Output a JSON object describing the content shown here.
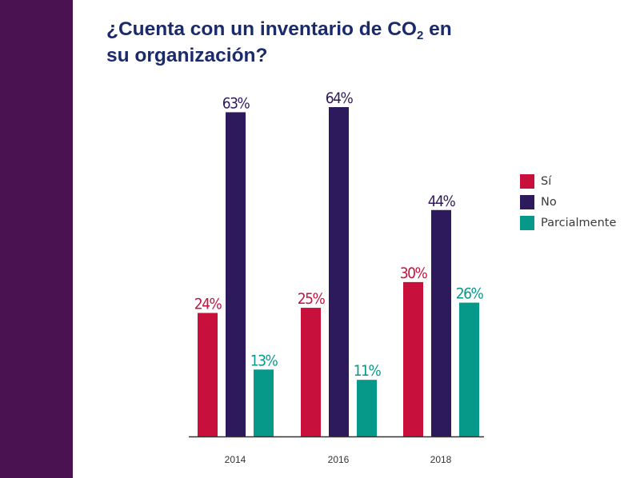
{
  "title_part1": "¿Cuenta con un inventario de CO",
  "title_sub": "2",
  "title_part2": " en",
  "title_line2": "su organización?",
  "colors": {
    "sidebar": "#4a1250",
    "title": "#1b2a6b",
    "axis": "#333333"
  },
  "chart_data": {
    "type": "bar",
    "categories": [
      "2014",
      "2016",
      "2018"
    ],
    "series": [
      {
        "name": "Sí",
        "color": "#c8103c",
        "values": [
          24,
          25,
          30
        ],
        "labels": [
          "24%",
          "25%",
          "30%"
        ]
      },
      {
        "name": "No",
        "color": "#2d1a5c",
        "values": [
          63,
          64,
          44
        ],
        "labels": [
          "63%",
          "64%",
          "44%"
        ]
      },
      {
        "name": "Parcialmente",
        "color": "#06998a",
        "values": [
          13,
          11,
          26
        ],
        "labels": [
          "13%",
          "11%",
          "26%"
        ]
      }
    ],
    "ylim": [
      0,
      64
    ],
    "grid": false,
    "legend_position": "right"
  }
}
